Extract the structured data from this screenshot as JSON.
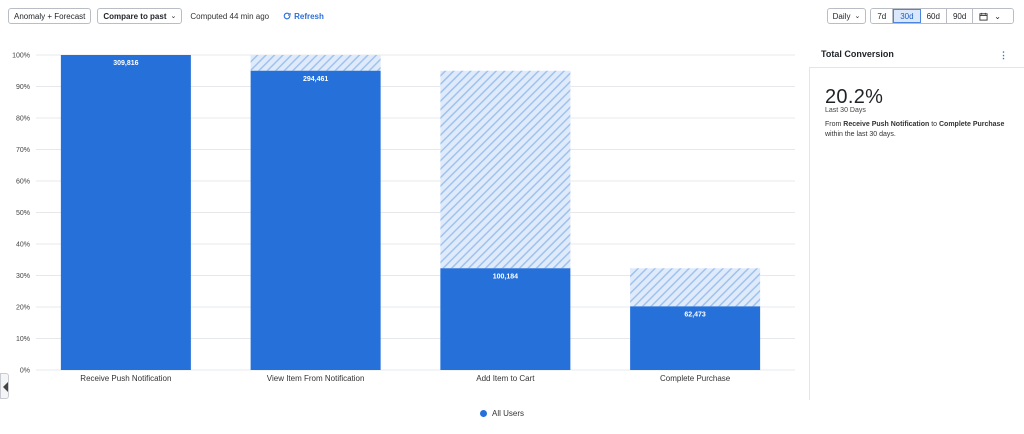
{
  "toolbar": {
    "anomaly_label": "Anomaly + Forecast",
    "compare_label": "Compare to past",
    "computed_text": "Computed 44 min ago",
    "refresh_label": "Refresh"
  },
  "range": {
    "interval_label": "Daily",
    "options": [
      "7d",
      "30d",
      "60d",
      "90d"
    ],
    "active": "30d"
  },
  "panel": {
    "title": "Total Conversion",
    "big_value": "20.2%",
    "period": "Last 30 Days",
    "desc_prefix": "From ",
    "from_step": "Receive Push Notification",
    "desc_mid": " to ",
    "to_step": "Complete Purchase",
    "desc_suffix": "within the last 30 days."
  },
  "colors": {
    "bar": "#2670d9",
    "dropoff_stripe": "#9fc2ee",
    "dropoff_bg": "#dfeafa",
    "active_seg": "#dbe8fb"
  },
  "chart_data": {
    "type": "bar",
    "categories": [
      "Receive Push Notification",
      "View Item From Notification",
      "Add Item to Cart",
      "Complete Purchase"
    ],
    "values": [
      100,
      95,
      32.3,
      20.2
    ],
    "previous_step_values": [
      100,
      100,
      95,
      32.3
    ],
    "data_labels": [
      "309,816",
      "294,461",
      "100,184",
      "62,473"
    ],
    "ylim": [
      0,
      100
    ],
    "yticks": [
      "0%",
      "10%",
      "20%",
      "30%",
      "40%",
      "50%",
      "60%",
      "70%",
      "80%",
      "90%",
      "100%"
    ],
    "grid": true,
    "legend": [
      "All Users"
    ],
    "legend_position": "bottom"
  }
}
